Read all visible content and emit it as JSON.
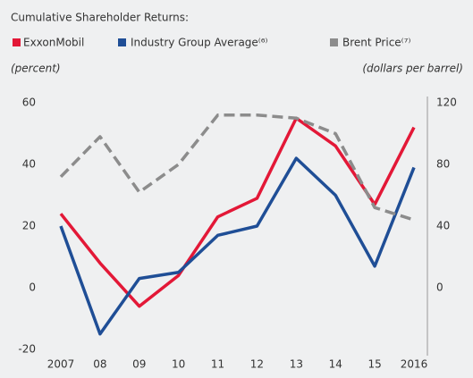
{
  "chart_data": {
    "type": "line",
    "title": "Cumulative Shareholder Returns:",
    "ylabel": "(percent)",
    "y2label": "(dollars per barrel)",
    "categories": [
      "2007",
      "08",
      "09",
      "10",
      "11",
      "12",
      "13",
      "14",
      "15",
      "2016"
    ],
    "series": [
      {
        "name": "ExxonMobil",
        "color": "#e31837",
        "values": [
          24,
          8,
          -6,
          4,
          23,
          29,
          55,
          46,
          27,
          52
        ]
      },
      {
        "name": "Industry Group Average⁽⁶⁾",
        "color": "#1f4e96",
        "values": [
          20,
          -15,
          3,
          5,
          17,
          20,
          42,
          30,
          7,
          39
        ]
      },
      {
        "name": "Brent Price⁽⁷⁾",
        "color": "#8c8c8c",
        "dashed": true,
        "axis": "y2",
        "values": [
          72,
          98,
          62,
          80,
          112,
          112,
          110,
          100,
          52,
          44
        ]
      }
    ],
    "ylim": [
      -20,
      60
    ],
    "yticks": [
      -20,
      0,
      20,
      40,
      60
    ],
    "y2lim": [
      -40,
      120
    ],
    "y2ticks": [
      0,
      40,
      80,
      120
    ]
  }
}
